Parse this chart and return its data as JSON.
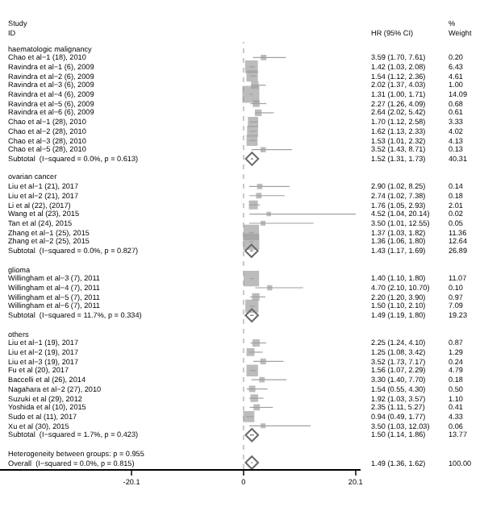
{
  "chart_data": {
    "type": "scatter",
    "orientation": "horizontal",
    "ylabel": "Study\nID",
    "annotations": [
      "HR (95% CI)",
      "%\nWeight"
    ],
    "categories": [
      "haematologic malignancy",
      "Chao et al−1 (18), 2010",
      "Ravindra et al−1 (6), 2009",
      "Ravindra et al−2 (6), 2009",
      "Ravindra et al−3 (6), 2009",
      "Ravindra et al−4 (6), 2009",
      "Ravindra et al−5 (6), 2009",
      "Ravindra et al−6 (6), 2009",
      "Chao et al−1 (28), 2010",
      "Chao et al−2 (28), 2010",
      "Chao et al−3 (28), 2010",
      "Chao et al−5 (28), 2010",
      "Subtotal  (I−squared = 0.0%, p = 0.613)",
      null,
      "ovarian cancer",
      "Liu et al−1 (21), 2017",
      "Liu et al−2 (21), 2017",
      "Li et al (22), (2017)",
      "Wang et al (23), 2015",
      "Tan et al (24), 2015",
      "Zhang et al−1 (25), 2015",
      "Zhang et al−2 (25), 2015",
      "Subtotal  (I−squared = 0.0%, p = 0.827)",
      null,
      "glioma",
      "Willingham et al−3 (7), 2011",
      "Willingham et al−4 (7), 2011",
      "Willingham et al−5 (7), 2011",
      "Willingham et al−6 (7), 2011",
      "Subtotal  (I−squared = 11.7%, p = 0.334)",
      null,
      "others",
      "Liu et al−1 (19), 2017",
      "Liu et al−2 (19), 2017",
      "Liu et al−3 (19), 2017",
      "Fu et al (20), 2017",
      "Baccelli et al (26), 2014",
      "Nagahara et al−2 (27), 2010",
      "Suzuki et al (29), 2012",
      "Yoshida et al (10), 2015",
      "Sudo et al (11), 2017",
      "Xu et al (30), 2015",
      "Subtotal  (I−squared = 1.7%, p = 0.423)",
      null,
      "Heterogeneity between groups: p = 0.955",
      "Overall  (I−squared = 0.0%, p = 0.815)"
    ],
    "series": [
      {
        "type": "bubble",
        "marker": "square",
        "color": "#a0a0a0",
        "values": [
          null,
          3.59,
          1.42,
          1.54,
          2.02,
          1.31,
          2.27,
          2.64,
          1.7,
          1.62,
          1.53,
          3.52,
          null,
          null,
          null,
          2.9,
          2.74,
          1.76,
          4.52,
          3.5,
          1.37,
          1.36,
          null,
          null,
          null,
          1.4,
          4.7,
          2.2,
          1.5,
          null,
          null,
          null,
          2.25,
          1.25,
          3.52,
          1.56,
          3.3,
          1.54,
          1.92,
          2.35,
          0.94,
          3.5,
          null,
          null,
          null,
          null
        ],
        "errors": [
          null,
          [
            1.7,
            7.61
          ],
          [
            1.03,
            2.08
          ],
          [
            1.12,
            2.36
          ],
          [
            1.37,
            4.03
          ],
          [
            1.0,
            1.71
          ],
          [
            1.26,
            4.09
          ],
          [
            2.02,
            5.42
          ],
          [
            1.12,
            2.58
          ],
          [
            1.13,
            2.33
          ],
          [
            1.01,
            2.32
          ],
          [
            1.43,
            8.71
          ],
          null,
          null,
          null,
          [
            1.02,
            8.25
          ],
          [
            1.02,
            7.38
          ],
          [
            1.05,
            2.93
          ],
          [
            1.04,
            20.14
          ],
          [
            1.01,
            12.55
          ],
          [
            1.03,
            1.82
          ],
          [
            1.06,
            1.8
          ],
          null,
          null,
          null,
          [
            1.1,
            1.8
          ],
          [
            2.1,
            10.7
          ],
          [
            1.2,
            3.9
          ],
          [
            1.1,
            2.1
          ],
          null,
          null,
          null,
          [
            1.24,
            4.1
          ],
          [
            1.08,
            3.42
          ],
          [
            1.73,
            7.17
          ],
          [
            1.07,
            2.29
          ],
          [
            1.4,
            7.7
          ],
          [
            0.55,
            4.3
          ],
          [
            1.03,
            3.57
          ],
          [
            1.11,
            5.27
          ],
          [
            0.49,
            1.77
          ],
          [
            1.03,
            12.03
          ],
          null,
          null,
          null,
          null
        ],
        "sizes": [
          null,
          0.014,
          0.456,
          0.327,
          0.071,
          1,
          0.048,
          0.043,
          0.236,
          0.285,
          0.293,
          0.009,
          null,
          null,
          null,
          0.01,
          0.013,
          0.143,
          0.001,
          0.004,
          0.806,
          0.897,
          null,
          null,
          null,
          0.786,
          0.007,
          0.069,
          0.503,
          null,
          null,
          null,
          0.062,
          0.092,
          0.017,
          0.34,
          0.013,
          0.035,
          0.078,
          0.029,
          0.307,
          0.004,
          null,
          null,
          null,
          null
        ],
        "value_labels": [
          null,
          "3.59 (1.70, 7.61) 0.20",
          "1.42 (1.03, 2.08) 6.43",
          "1.54 (1.12, 2.36) 4.61",
          "2.02 (1.37, 4.03) 1.00",
          "1.31 (1.00, 1.71) 14.09",
          "2.27 (1.26, 4.09) 0.68",
          "2.64 (2.02, 5.42) 0.61",
          "1.70 (1.12, 2.58) 3.33",
          "1.62 (1.13, 2.33) 4.02",
          "1.53 (1.01, 2.32) 4.13",
          "3.52 (1.43, 8.71) 0.13",
          null,
          null,
          null,
          "2.90 (1.02, 8.25) 0.14",
          "2.74 (1.02, 7.38) 0.18",
          "1.76 (1.05, 2.93) 2.01",
          "4.52 (1.04, 20.14) 0.02",
          "3.50 (1.01, 12.55) 0.05",
          "1.37 (1.03, 1.82) 11.36",
          "1.36 (1.06, 1.80) 12.64",
          null,
          null,
          null,
          "1.40 (1.10, 1.80) 11.07",
          "4.70 (2.10, 10.70) 0.10",
          "2.20 (1.20, 3.90) 0.97",
          "1.50 (1.10, 2.10) 7.09",
          null,
          null,
          null,
          "2.25 (1.24, 4.10) 0.87",
          "1.25 (1.08, 3.42) 1.29",
          "3.52 (1.73, 7.17) 0.24",
          "1.56 (1.07, 2.29) 4.79",
          "3.30 (1.40, 7.70) 0.18",
          "1.54 (0.55, 4.30) 0.50",
          "1.92 (1.03, 3.57) 1.10",
          "2.35 (1.11, 5.27) 0.41",
          "0.94 (0.49, 1.77) 4.33",
          "3.50 (1.03, 12.03) 0.06",
          null,
          null,
          null,
          null
        ]
      },
      {
        "marker": "diamond",
        "color": "#6a6a6a",
        "values": [
          null,
          null,
          null,
          null,
          null,
          null,
          null,
          null,
          null,
          null,
          null,
          null,
          1.52,
          null,
          null,
          null,
          null,
          null,
          null,
          null,
          null,
          null,
          1.43,
          null,
          null,
          null,
          null,
          null,
          null,
          1.49,
          null,
          null,
          null,
          null,
          null,
          null,
          null,
          null,
          null,
          null,
          null,
          null,
          1.5,
          null,
          null,
          1.49
        ],
        "errors": [
          null,
          null,
          null,
          null,
          null,
          null,
          null,
          null,
          null,
          null,
          null,
          null,
          [
            1.31,
            1.73
          ],
          null,
          null,
          null,
          null,
          null,
          null,
          null,
          null,
          null,
          [
            1.17,
            1.69
          ],
          null,
          null,
          null,
          null,
          null,
          null,
          [
            1.19,
            1.8
          ],
          null,
          null,
          null,
          null,
          null,
          null,
          null,
          null,
          null,
          null,
          null,
          null,
          [
            1.14,
            1.86
          ],
          null,
          null,
          [
            1.36,
            1.62
          ]
        ],
        "value_labels": [
          null,
          null,
          null,
          null,
          null,
          null,
          null,
          null,
          null,
          null,
          null,
          null,
          "1.52 (1.31, 1.73) 40.31",
          null,
          null,
          null,
          null,
          null,
          null,
          null,
          null,
          null,
          "1.43 (1.17, 1.69) 26.89",
          null,
          null,
          null,
          null,
          null,
          null,
          "1.49 (1.19, 1.80) 19.23",
          null,
          null,
          null,
          null,
          null,
          null,
          null,
          null,
          null,
          null,
          null,
          null,
          "1.50 (1.14, 1.86) 13.77",
          null,
          null,
          "1.49 (1.36, 1.62) 100.00"
        ]
      }
    ],
    "xlim": [
      -43.7,
      21
    ],
    "xticks": [
      -20.1,
      0,
      20.1
    ],
    "ref_lines": [
      {
        "axis": "x",
        "value": 0,
        "color": "#c8c8c8",
        "line_style": "dotted"
      }
    ],
    "grid": false
  }
}
